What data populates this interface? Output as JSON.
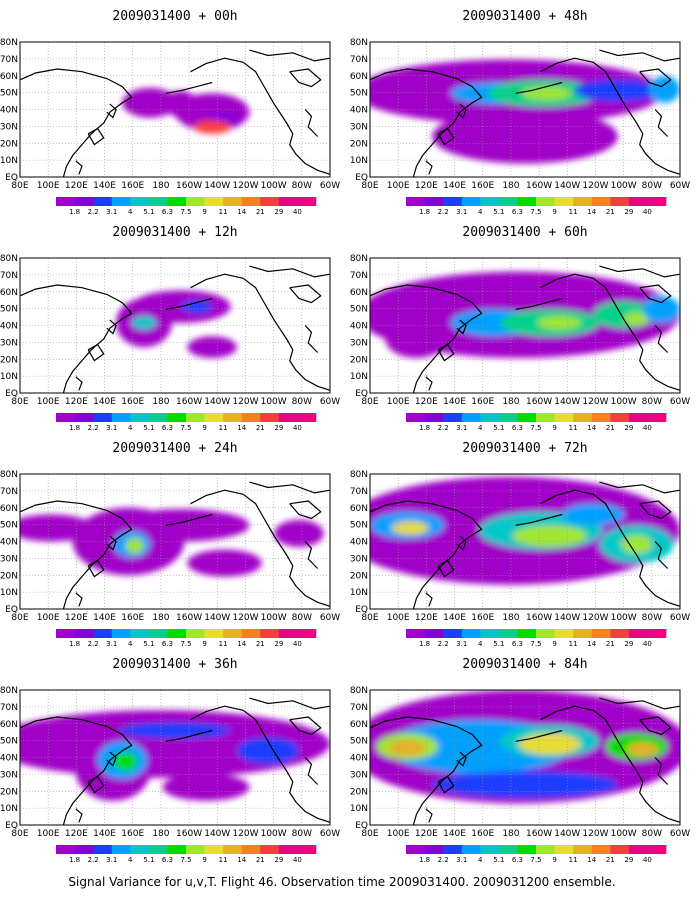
{
  "figure": {
    "caption": "Signal Variance for u,v,T. Flight 46. Observation time 2009031400. 2009031200 ensemble.",
    "latitude_labels": [
      "EQ",
      "10N",
      "20N",
      "30N",
      "40N",
      "50N",
      "60N",
      "70N",
      "80N"
    ],
    "longitude_labels": [
      "80E",
      "100E",
      "120E",
      "140E",
      "160E",
      "180",
      "160W",
      "140W",
      "120W",
      "100W",
      "80W",
      "60W"
    ],
    "colorbar": {
      "levels": [
        "1.8",
        "2.2",
        "3.1",
        "4",
        "5.1",
        "6.3",
        "7.5",
        "9",
        "11",
        "14",
        "21",
        "29",
        "40"
      ],
      "colors": [
        "#a000c8",
        "#8200dc",
        "#1e3cff",
        "#00a0ff",
        "#00c8c8",
        "#00d28c",
        "#00dc00",
        "#a0e632",
        "#e6dc32",
        "#e6af2d",
        "#f08228",
        "#fa3c3c",
        "#f00082"
      ]
    },
    "panels": [
      {
        "title": "2009031400 + 00h",
        "lead_hours": 0
      },
      {
        "title": "2009031400 + 48h",
        "lead_hours": 48
      },
      {
        "title": "2009031400 + 12h",
        "lead_hours": 12
      },
      {
        "title": "2009031400 + 60h",
        "lead_hours": 60
      },
      {
        "title": "2009031400 + 24h",
        "lead_hours": 24
      },
      {
        "title": "2009031400 + 72h",
        "lead_hours": 72
      },
      {
        "title": "2009031400 + 36h",
        "lead_hours": 36
      },
      {
        "title": "2009031400 + 84h",
        "lead_hours": 84
      }
    ]
  }
}
